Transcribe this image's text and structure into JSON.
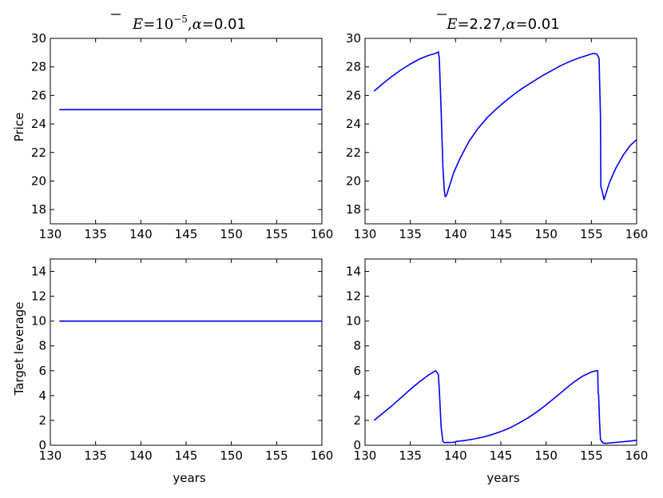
{
  "chart_data": [
    {
      "type": "line",
      "title": "E=10^-5, α=0.01",
      "title_parts": {
        "sym": "E",
        "eq1": "=",
        "base": "10",
        "exp": "−5",
        "comma": ",",
        "alpha": "α",
        "eq2": "=",
        "val": "0.01"
      },
      "xlabel": "",
      "ylabel": "Price",
      "xlim": [
        130,
        160
      ],
      "ylim": [
        17,
        30
      ],
      "xticks": [
        "130",
        "135",
        "140",
        "145",
        "150",
        "155",
        "160"
      ],
      "yticks": [
        "18",
        "20",
        "22",
        "24",
        "26",
        "28",
        "30"
      ],
      "color": "#0000ff",
      "series": [
        {
          "x": [
            131,
            160
          ],
          "y": [
            25,
            25
          ]
        }
      ]
    },
    {
      "type": "line",
      "title": "E=2.27, α=0.01",
      "title_parts": {
        "sym": "E",
        "eq1": "=",
        "val1": "2.27",
        "comma": ",",
        "alpha": "α",
        "eq2": "=",
        "val": "0.01"
      },
      "xlabel": "",
      "ylabel": "",
      "xlim": [
        130,
        160
      ],
      "ylim": [
        17,
        30
      ],
      "xticks": [
        "130",
        "135",
        "140",
        "145",
        "150",
        "155",
        "160"
      ],
      "yticks": [
        "18",
        "20",
        "22",
        "24",
        "26",
        "28",
        "30"
      ],
      "color": "#0000ff",
      "series": [
        {
          "x": [
            131,
            132,
            133,
            134,
            135,
            136,
            137,
            137.8,
            138.1,
            138.2,
            138.4,
            138.6,
            138.75,
            138.85,
            139.0,
            139.3,
            139.8,
            140.5,
            141.5,
            142.5,
            143.5,
            144.5,
            145.5,
            146.5,
            147.5,
            148.5,
            149.5,
            150.5,
            151.5,
            152.5,
            153.5,
            154.5,
            155.2,
            155.6,
            155.85,
            156.0,
            156.05,
            156.15,
            156.4,
            156.6,
            157.0,
            157.7,
            158.5,
            159.3,
            160
          ],
          "y": [
            26.3,
            26.85,
            27.35,
            27.8,
            28.2,
            28.55,
            28.8,
            28.95,
            29.05,
            28.6,
            25.0,
            21.0,
            19.4,
            18.9,
            19.0,
            19.6,
            20.6,
            21.6,
            22.8,
            23.7,
            24.45,
            25.05,
            25.6,
            26.1,
            26.55,
            26.95,
            27.35,
            27.7,
            28.05,
            28.35,
            28.6,
            28.8,
            28.95,
            28.9,
            28.6,
            24.6,
            19.6,
            19.4,
            18.7,
            19.1,
            19.9,
            20.9,
            21.8,
            22.5,
            22.9
          ]
        }
      ]
    },
    {
      "type": "line",
      "title": "",
      "xlabel": "years",
      "ylabel": "Target leverage",
      "xlim": [
        130,
        160
      ],
      "ylim": [
        0,
        15
      ],
      "xticks": [
        "130",
        "135",
        "140",
        "145",
        "150",
        "155",
        "160"
      ],
      "yticks": [
        "0",
        "2",
        "4",
        "6",
        "8",
        "10",
        "12",
        "14"
      ],
      "color": "#0000ff",
      "series": [
        {
          "x": [
            131,
            160
          ],
          "y": [
            10,
            10
          ]
        }
      ]
    },
    {
      "type": "line",
      "title": "",
      "xlabel": "years",
      "ylabel": "",
      "xlim": [
        130,
        160
      ],
      "ylim": [
        0,
        15
      ],
      "xticks": [
        "130",
        "135",
        "140",
        "145",
        "150",
        "155",
        "160"
      ],
      "yticks": [
        "0",
        "2",
        "4",
        "6",
        "8",
        "10",
        "12",
        "14"
      ],
      "color": "#0000ff",
      "series": [
        {
          "x": [
            131,
            132,
            133,
            134,
            135,
            136,
            137,
            137.8,
            138.1,
            138.2,
            138.4,
            138.6,
            138.8,
            139.0,
            139.5,
            140.0,
            140.01,
            141,
            142,
            143,
            144,
            145,
            146,
            147,
            148,
            149,
            150,
            151,
            152,
            153,
            154,
            155,
            155.5,
            155.7,
            155.75,
            155.8,
            155.9,
            156.0,
            156.1,
            156.3,
            156.5,
            157,
            158,
            159,
            160
          ],
          "y": [
            2.0,
            2.6,
            3.2,
            3.85,
            4.5,
            5.1,
            5.65,
            6.0,
            5.7,
            4.5,
            1.5,
            0.3,
            0.2,
            0.22,
            0.22,
            0.25,
            0.3,
            0.38,
            0.5,
            0.65,
            0.85,
            1.1,
            1.4,
            1.78,
            2.2,
            2.7,
            3.25,
            3.85,
            4.45,
            5.05,
            5.55,
            5.9,
            6.0,
            6.0,
            4.2,
            4.1,
            2.0,
            0.5,
            0.35,
            0.18,
            0.15,
            0.18,
            0.25,
            0.32,
            0.4
          ]
        }
      ]
    }
  ]
}
